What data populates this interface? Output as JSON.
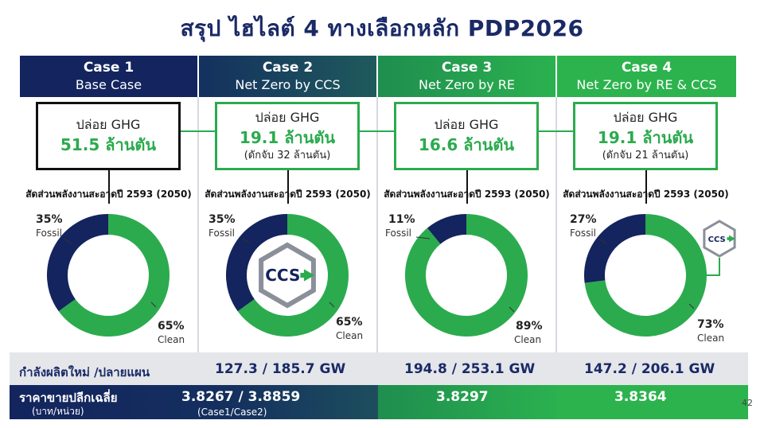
{
  "title": "สรุป ไฮไลต์ 4 ทางเลือกหลัก PDP2026",
  "cases": [
    {
      "head": "Case 1",
      "subtitle": "Base Case",
      "ghg_label": "ปล่อย GHG",
      "ghg_value": "51.5 ล้านตัน",
      "ghg_sub": ""
    },
    {
      "head": "Case 2",
      "subtitle": "Net Zero by CCS",
      "ghg_label": "ปล่อย GHG",
      "ghg_value": "19.1 ล้านตัน",
      "ghg_sub": "(ดักจับ 32 ล้านตัน)"
    },
    {
      "head": "Case 3",
      "subtitle": "Net Zero by RE",
      "ghg_label": "ปล่อย GHG",
      "ghg_value": "16.6 ล้านตัน",
      "ghg_sub": ""
    },
    {
      "head": "Case 4",
      "subtitle": "Net Zero by RE & CCS",
      "ghg_label": "ปล่อย GHG",
      "ghg_value": "19.1 ล้านตัน",
      "ghg_sub": "(ดักจับ 21 ล้านตัน)"
    }
  ],
  "share_title": "สัดส่วนพลังงานสะอาดปี 2593 (2050)",
  "fossil_label": "Fossil",
  "clean_label": "Clean",
  "ccs_label": "CCS",
  "colors": {
    "fossil": "#13245e",
    "clean": "#2bab4e"
  },
  "capacity_label": "กำลังผลิตใหม่ /ปลายแผน",
  "capacity_values": [
    "127.3  / 185.7 GW",
    "194.8 / 253.1 GW",
    "147.2 / 206.1 GW"
  ],
  "price_label": "ราคาขายปลีกเฉลี่ย",
  "price_unit": "(บาท/หน่วย)",
  "price_values": [
    "3.8267 / 3.8859",
    "3.8297",
    "3.8364"
  ],
  "price_note": "(Case1/Case2)",
  "page_number": "42",
  "chart_data": [
    {
      "type": "pie",
      "title": "สัดส่วนพลังงานสะอาดปี 2593 (2050)",
      "case": "Case 1",
      "categories": [
        "Fossil",
        "Clean"
      ],
      "values": [
        35,
        65
      ],
      "value_labels": [
        "35%",
        "65%"
      ]
    },
    {
      "type": "pie",
      "title": "สัดส่วนพลังงานสะอาดปี 2593 (2050)",
      "case": "Case 2",
      "categories": [
        "Fossil",
        "Clean"
      ],
      "values": [
        35,
        65
      ],
      "value_labels": [
        "35%",
        "65%"
      ]
    },
    {
      "type": "pie",
      "title": "สัดส่วนพลังงานสะอาดปี 2593 (2050)",
      "case": "Case 3",
      "categories": [
        "Fossil",
        "Clean"
      ],
      "values": [
        11,
        89
      ],
      "value_labels": [
        "11%",
        "89%"
      ]
    },
    {
      "type": "pie",
      "title": "สัดส่วนพลังงานสะอาดปี 2593 (2050)",
      "case": "Case 4",
      "categories": [
        "Fossil",
        "Clean"
      ],
      "values": [
        27,
        73
      ],
      "value_labels": [
        "27%",
        "73%"
      ]
    }
  ]
}
